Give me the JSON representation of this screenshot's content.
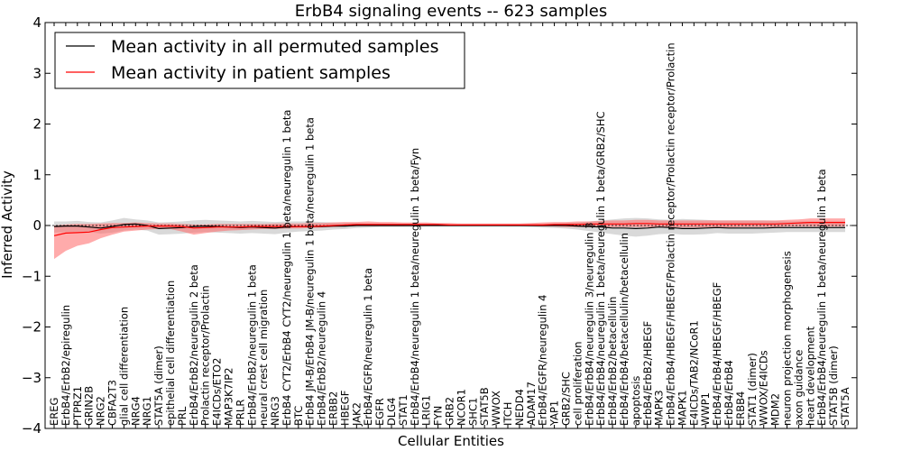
{
  "chart_data": {
    "type": "line",
    "title": "ErbB4 signaling events -- 623 samples",
    "xlabel": "Cellular Entities",
    "ylabel": "Inferred Activity",
    "ylim": [
      -4,
      4
    ],
    "yticks": [
      -4,
      -3,
      -2,
      -1,
      0,
      1,
      2,
      3,
      4
    ],
    "legend_position": "top-left",
    "categories": [
      "EREG",
      "ErbB4/ErbB2/epiregulin",
      "PTPRZ1",
      "GRIN2B",
      "NRG2",
      "CBFA2T3",
      "glial cell differentiation",
      "NRG4",
      "NRG1",
      "STAT5A (dimer)",
      "epithelial cell differentiation",
      "PRL",
      "ErbB4/ErbB2/neuregulin 2 beta",
      "Prolactin receptor/Prolactin",
      "E4ICDs/ETO2",
      "MAP3K7IP2",
      "PRLR",
      "ErbB4/ErbB2/neuregulin 1 beta",
      "neural crest cell migration",
      "NRG3",
      "ErbB4 CYT2/ErbB4 CYT2/neuregulin 1 beta/neuregulin 1 beta",
      "BTC",
      "ErbB4 JM-B/ErbB4 JM-B/neuregulin 1 beta/neuregulin 1 beta",
      "ErbB4/ErbB2/neuregulin 4",
      "ERBB2",
      "HBEGF",
      "JAK2",
      "ErbB4/EGFR/neuregulin 1 beta",
      "EGFR",
      "DLG4",
      "STAT1",
      "ErbB4/ErbB4/neuregulin 1 beta/neuregulin 1 beta/Fyn",
      "LRIG1",
      "FYN",
      "GRB2",
      "NCOR1",
      "SHC1",
      "STAT5B",
      "WWOX",
      "ITCH",
      "NEDD4",
      "ADAM17",
      "ErbB4/EGFR/neuregulin 4",
      "YAP1",
      "GRB2/SHC",
      "cell proliferation",
      "ErbB4/ErbB4/neuregulin 3/neuregulin 3",
      "ErbB4/ErbB4/neuregulin 1 beta/neuregulin 1 beta/GRB2/SHC",
      "ErbB4/ErbB2/betacellulin",
      "ErbB4/ErbB4/betacellulin/betacellulin",
      "apoptosis",
      "ErbB4/ErbB2/HBEGF",
      "MAPK3",
      "ErbB4/ErbB4/HBEGF/HBEGF/Prolactin receptor/Prolactin receptor/Prolactin",
      "MAPK1",
      "E4ICDs/TAB2/NCoR1",
      "WWP1",
      "ErbB4/ErbB4/HBEGF/HBEGF",
      "ErbB4/ErbB4",
      "ERBB4",
      "STAT1 (dimer)",
      "WWOX/E4ICDs",
      "MDM2",
      "neuron projection morphogenesis",
      "axon guidance",
      "heart development",
      "ErbB4/ErbB4/neuregulin 1 beta/neuregulin 1 beta",
      "STAT5B (dimer)",
      "STAT5A"
    ],
    "series": [
      {
        "name": "Mean activity in all permuted samples",
        "color": "#000000",
        "band_color": "#c0c0c0",
        "values": [
          -0.02,
          -0.01,
          -0.01,
          -0.03,
          -0.05,
          -0.02,
          0.02,
          0.03,
          0.0,
          -0.06,
          -0.05,
          -0.04,
          -0.02,
          -0.01,
          -0.02,
          -0.03,
          -0.04,
          -0.03,
          -0.04,
          -0.05,
          -0.03,
          -0.02,
          -0.02,
          -0.02,
          -0.01,
          -0.01,
          0.0,
          0.0,
          0.0,
          0.0,
          0.0,
          0.0,
          0.0,
          0.0,
          0.0,
          0.0,
          0.0,
          0.0,
          0.0,
          0.0,
          0.0,
          0.0,
          0.0,
          0.0,
          0.0,
          -0.01,
          -0.02,
          -0.03,
          -0.05,
          -0.05,
          -0.06,
          -0.05,
          -0.03,
          -0.04,
          -0.06,
          -0.06,
          -0.05,
          -0.04,
          -0.05,
          -0.05,
          -0.05,
          -0.05,
          -0.04,
          -0.04,
          -0.04,
          -0.04,
          -0.04,
          -0.04,
          -0.04
        ],
        "upper": [
          0.08,
          0.08,
          0.09,
          0.07,
          0.06,
          0.1,
          0.15,
          0.12,
          0.1,
          0.06,
          0.07,
          0.08,
          0.1,
          0.11,
          0.1,
          0.09,
          0.08,
          0.09,
          0.08,
          0.07,
          0.08,
          0.08,
          0.08,
          0.07,
          0.06,
          0.05,
          0.05,
          0.04,
          0.04,
          0.03,
          0.03,
          0.03,
          0.02,
          0.02,
          0.02,
          0.02,
          0.02,
          0.02,
          0.02,
          0.02,
          0.02,
          0.03,
          0.03,
          0.04,
          0.05,
          0.06,
          0.08,
          0.1,
          0.12,
          0.14,
          0.15,
          0.14,
          0.12,
          0.11,
          0.13,
          0.12,
          0.11,
          0.1,
          0.1,
          0.1,
          0.1,
          0.1,
          0.09,
          0.08,
          0.08,
          0.08,
          0.08,
          0.08,
          0.08
        ],
        "lower": [
          -0.14,
          -0.13,
          -0.12,
          -0.13,
          -0.16,
          -0.14,
          -0.1,
          -0.08,
          -0.1,
          -0.18,
          -0.17,
          -0.16,
          -0.14,
          -0.13,
          -0.14,
          -0.15,
          -0.16,
          -0.15,
          -0.16,
          -0.17,
          -0.14,
          -0.12,
          -0.11,
          -0.1,
          -0.08,
          -0.07,
          -0.05,
          -0.04,
          -0.03,
          -0.03,
          -0.03,
          -0.03,
          -0.02,
          -0.02,
          -0.02,
          -0.02,
          -0.02,
          -0.02,
          -0.02,
          -0.02,
          -0.02,
          -0.03,
          -0.04,
          -0.05,
          -0.06,
          -0.08,
          -0.11,
          -0.14,
          -0.17,
          -0.2,
          -0.22,
          -0.2,
          -0.17,
          -0.16,
          -0.18,
          -0.18,
          -0.17,
          -0.15,
          -0.16,
          -0.16,
          -0.16,
          -0.15,
          -0.14,
          -0.13,
          -0.13,
          -0.13,
          -0.13,
          -0.13,
          -0.13
        ]
      },
      {
        "name": "Mean activity in patient samples",
        "color": "#ff0000",
        "band_color": "#ff6666",
        "values": [
          -0.2,
          -0.15,
          -0.14,
          -0.13,
          -0.08,
          -0.04,
          -0.03,
          -0.02,
          -0.01,
          -0.01,
          -0.01,
          -0.02,
          -0.05,
          -0.04,
          -0.03,
          -0.03,
          -0.03,
          -0.02,
          -0.02,
          -0.02,
          -0.02,
          -0.02,
          -0.02,
          -0.01,
          0.0,
          0.01,
          0.02,
          0.02,
          0.02,
          0.02,
          0.02,
          0.02,
          0.02,
          0.02,
          0.01,
          0.01,
          0.01,
          0.01,
          0.01,
          0.01,
          0.01,
          0.01,
          0.01,
          0.02,
          0.02,
          0.02,
          0.03,
          0.03,
          0.03,
          0.03,
          0.04,
          0.04,
          0.03,
          0.03,
          0.03,
          0.03,
          0.03,
          0.03,
          0.03,
          0.03,
          0.03,
          0.03,
          0.03,
          0.04,
          0.05,
          0.06,
          0.06,
          0.06,
          0.06
        ],
        "upper": [
          0.0,
          0.02,
          0.03,
          0.03,
          0.04,
          0.05,
          0.05,
          0.06,
          0.05,
          0.04,
          0.04,
          0.03,
          0.02,
          0.02,
          0.03,
          0.03,
          0.03,
          0.03,
          0.03,
          0.04,
          0.04,
          0.04,
          0.05,
          0.05,
          0.06,
          0.07,
          0.07,
          0.08,
          0.07,
          0.07,
          0.06,
          0.06,
          0.06,
          0.05,
          0.05,
          0.04,
          0.04,
          0.04,
          0.04,
          0.04,
          0.04,
          0.05,
          0.06,
          0.07,
          0.07,
          0.08,
          0.08,
          0.09,
          0.1,
          0.1,
          0.11,
          0.11,
          0.1,
          0.1,
          0.1,
          0.1,
          0.1,
          0.1,
          0.1,
          0.1,
          0.1,
          0.1,
          0.1,
          0.11,
          0.12,
          0.14,
          0.14,
          0.14,
          0.14
        ],
        "lower": [
          -0.66,
          -0.5,
          -0.4,
          -0.35,
          -0.25,
          -0.18,
          -0.12,
          -0.1,
          -0.08,
          -0.07,
          -0.07,
          -0.12,
          -0.18,
          -0.15,
          -0.12,
          -0.1,
          -0.09,
          -0.08,
          -0.07,
          -0.07,
          -0.06,
          -0.06,
          -0.05,
          -0.04,
          -0.03,
          -0.02,
          -0.01,
          -0.01,
          -0.01,
          -0.01,
          -0.01,
          0.0,
          0.0,
          0.0,
          0.0,
          0.0,
          0.0,
          0.0,
          0.0,
          -0.01,
          -0.01,
          -0.01,
          -0.02,
          -0.02,
          -0.03,
          -0.03,
          -0.03,
          -0.03,
          -0.03,
          -0.03,
          -0.03,
          -0.03,
          -0.04,
          -0.04,
          -0.04,
          -0.04,
          -0.04,
          -0.04,
          -0.04,
          -0.03,
          -0.03,
          -0.03,
          -0.03,
          -0.02,
          -0.02,
          -0.02,
          -0.02,
          -0.02,
          -0.02
        ]
      }
    ]
  }
}
